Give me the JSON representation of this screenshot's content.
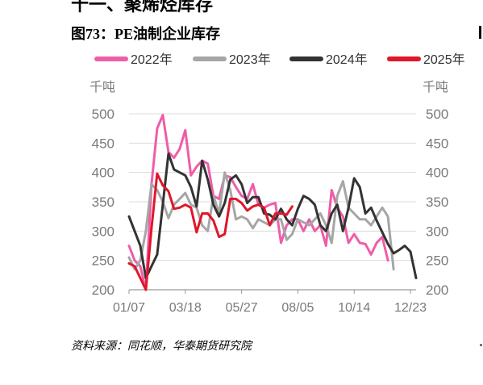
{
  "header": {
    "section_title": "十一、聚烯烃库存",
    "figure_title": "图73：PE油制企业库存"
  },
  "footer": {
    "source": "资料来源：同花顺，华泰期货研究院"
  },
  "chart_data": {
    "type": "line",
    "title": "图73：PE油制企业库存",
    "ylabel_left": "千吨",
    "ylabel_right": "千吨",
    "ylim": [
      200,
      500
    ],
    "yticks": [
      200,
      250,
      300,
      350,
      400,
      450,
      500
    ],
    "xlim": [
      0,
      51
    ],
    "x_ticks": [
      {
        "week": 0,
        "label": "01/07"
      },
      {
        "week": 10,
        "label": "03/18"
      },
      {
        "week": 20,
        "label": "05/27"
      },
      {
        "week": 30,
        "label": "08/05"
      },
      {
        "week": 40,
        "label": "10/14"
      },
      {
        "week": 50,
        "label": "12/23"
      }
    ],
    "grid": true,
    "legend_position": "top",
    "series": [
      {
        "name": "2022年",
        "color": "#ef5da8",
        "values": [
          275,
          250,
          240,
          200,
          380,
          475,
          498,
          435,
          425,
          440,
          472,
          395,
          410,
          420,
          415,
          360,
          355,
          395,
          392,
          375,
          360,
          355,
          380,
          345,
          340,
          345,
          348,
          280,
          310,
          320,
          320,
          300,
          320,
          300,
          310,
          275,
          370,
          340,
          325,
          280,
          295,
          280,
          278,
          260,
          280,
          290,
          250
        ]
      },
      {
        "name": "2023年",
        "color": "#a6a6a6",
        "values": [
          255,
          235,
          250,
          300,
          380,
          370,
          350,
          322,
          345,
          355,
          365,
          345,
          340,
          310,
          300,
          360,
          330,
          400,
          370,
          320,
          325,
          320,
          305,
          320,
          315,
          310,
          320,
          320,
          285,
          295,
          320,
          315,
          310,
          320,
          330,
          310,
          280,
          360,
          385,
          340,
          330,
          320,
          320,
          310,
          325,
          340,
          325,
          235
        ]
      },
      {
        "name": "2024年",
        "color": "#333333",
        "values": [
          325,
          300,
          275,
          220,
          240,
          260,
          345,
          432,
          405,
          400,
          395,
          375,
          342,
          420,
          388,
          345,
          325,
          348,
          388,
          395,
          380,
          348,
          358,
          358,
          330,
          328,
          320,
          338,
          320,
          310,
          338,
          360,
          355,
          345,
          310,
          300,
          330,
          345,
          300,
          340,
          390,
          375,
          330,
          340,
          318,
          298,
          278,
          262,
          268,
          275,
          265,
          220
        ]
      },
      {
        "name": "2025年",
        "color": "#e0162b",
        "values": [
          245,
          240,
          220,
          200,
          305,
          398,
          378,
          368,
          338,
          340,
          345,
          340,
          298,
          330,
          330,
          318,
          290,
          295,
          355,
          355,
          348,
          335,
          342,
          345,
          340,
          310,
          330,
          330,
          328,
          342
        ]
      }
    ]
  }
}
